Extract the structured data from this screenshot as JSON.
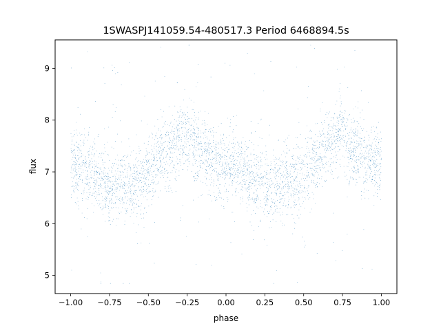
{
  "chart_data": {
    "type": "scatter",
    "title": "1SWASPJ141059.54-480517.3 Period 6468894.5s",
    "xlabel": "phase",
    "ylabel": "flux",
    "xlim": [
      -1.1,
      1.1
    ],
    "ylim": [
      4.65,
      9.55
    ],
    "xticks": [
      -1.0,
      -0.75,
      -0.5,
      -0.25,
      0.0,
      0.25,
      0.5,
      0.75,
      1.0
    ],
    "xtick_labels": [
      "−1.00",
      "−0.75",
      "−0.50",
      "−0.25",
      "0.00",
      "0.25",
      "0.50",
      "0.75",
      "1.00"
    ],
    "yticks": [
      5,
      6,
      7,
      8,
      9
    ],
    "ytick_labels": [
      "5",
      "6",
      "7",
      "8",
      "9"
    ],
    "grid": false,
    "legend": "none",
    "point_color": "#1f77b4",
    "series": [
      {
        "symmetry": "phase-folded, pattern repeats with period 1.0 across x in [-1, 1]",
        "x_range": [
          -1.0,
          1.0
        ],
        "trend_x": [
          -1.0,
          -0.95,
          -0.9,
          -0.85,
          -0.8,
          -0.75,
          -0.7,
          -0.65,
          -0.6,
          -0.55,
          -0.5,
          -0.45,
          -0.4,
          -0.35,
          -0.3,
          -0.25,
          -0.2,
          -0.15,
          -0.1,
          -0.05,
          0.0
        ],
        "trend_y": [
          7.2,
          7.1,
          7.0,
          6.95,
          6.8,
          6.75,
          6.75,
          6.8,
          6.8,
          6.85,
          7.0,
          7.2,
          7.3,
          7.5,
          7.65,
          7.75,
          7.5,
          7.35,
          7.2,
          7.15,
          7.2
        ],
        "typical_spread": 0.35,
        "y_extremes": [
          4.85,
          9.45
        ]
      }
    ]
  }
}
